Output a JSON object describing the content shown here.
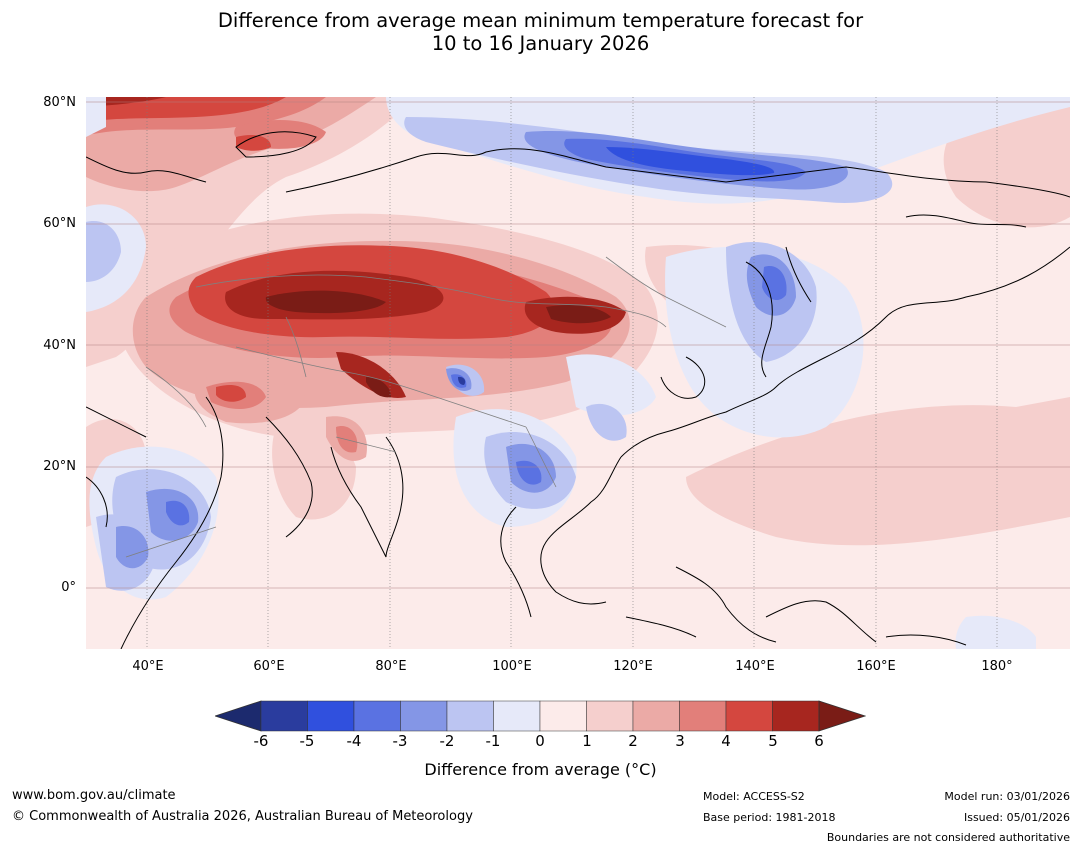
{
  "title_line1": "Difference from average mean minimum temperature forecast for",
  "title_line2": "10 to 16 January 2026",
  "map": {
    "latitude_labels": [
      "80°N",
      "60°N",
      "40°N",
      "20°N",
      "0°"
    ],
    "longitude_labels": [
      "40°E",
      "60°E",
      "80°E",
      "100°E",
      "120°E",
      "140°E",
      "160°E",
      "180°"
    ],
    "lat_range": [
      -10,
      80
    ],
    "lon_range": [
      30,
      192
    ]
  },
  "colorbar": {
    "ticks": [
      "-6",
      "-5",
      "-4",
      "-3",
      "-2",
      "-1",
      "0",
      "1",
      "2",
      "3",
      "4",
      "5",
      "6"
    ],
    "colors": [
      "#2a3c9e",
      "#3050de",
      "#5a72e2",
      "#8496e6",
      "#bcc5f2",
      "#e6e9f9",
      "#fcebea",
      "#f5cfcd",
      "#ebaaa6",
      "#e27f7a",
      "#d4473f",
      "#a7261f"
    ],
    "extend_low": "#1c2a6e",
    "extend_high": "#7a1c16",
    "label": "Difference from average (°C)"
  },
  "footer": {
    "website": "www.bom.gov.au/climate",
    "copyright": "© Commonwealth of Australia 2026, Australian Bureau of Meteorology",
    "model": "Model: ACCESS-S2",
    "base_period": "Base period: 1981-2018",
    "model_run": "Model run: 03/01/2026",
    "issued": "Issued: 05/01/2026",
    "boundaries_note": "Boundaries are not considered authoritative"
  }
}
